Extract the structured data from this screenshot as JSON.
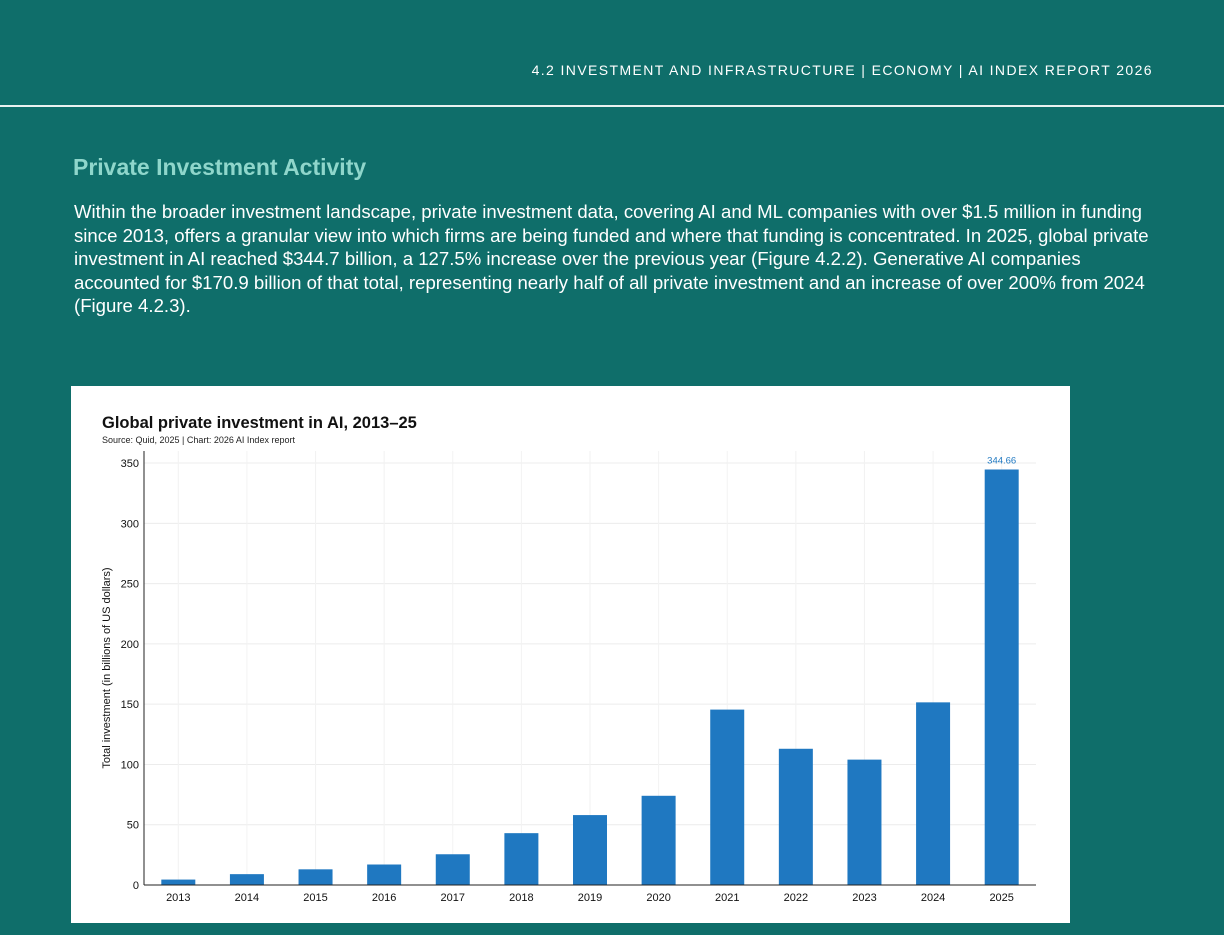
{
  "header": {
    "breadcrumb": "4.2 INVESTMENT AND INFRASTRUCTURE  |  ECONOMY  |  AI INDEX REPORT 2026"
  },
  "section": {
    "title": "Private Investment Activity",
    "paragraph": "Within the broader investment landscape, private investment data, covering AI and ML companies with over $1.5 million in funding since 2013, offers a granular view into which firms are being funded and where that funding is concentrated. In 2025, global private investment in AI reached $344.7 billion, a 127.5% increase over the previous year (Figure 4.2.2). Generative AI companies accounted for $170.9 billion of that total, representing nearly half of all private investment and an increase of over 200% from 2024 (Figure 4.2.3)."
  },
  "colors": {
    "page_background": "#0f6e6a",
    "section_title": "#8fd6cb",
    "bar": "#1f78c1"
  },
  "chart_data": {
    "type": "bar",
    "title": "Global private investment in AI, 2013–25",
    "source": "Source: Quid, 2025 | Chart: 2026 AI Index report",
    "xlabel": "",
    "ylabel": "Total investment (in billions of US dollars)",
    "categories": [
      "2013",
      "2014",
      "2015",
      "2016",
      "2017",
      "2018",
      "2019",
      "2020",
      "2021",
      "2022",
      "2023",
      "2024",
      "2025"
    ],
    "values": [
      4.5,
      9,
      13,
      17,
      25.5,
      43,
      58,
      74,
      145.5,
      113,
      104,
      151.5,
      344.66
    ],
    "data_labels": [
      {
        "category": "2025",
        "text": "344.66"
      }
    ],
    "ylim": [
      0,
      360
    ],
    "yticks": [
      0,
      50,
      100,
      150,
      200,
      250,
      300,
      350
    ],
    "grid": true,
    "legend": "none"
  }
}
